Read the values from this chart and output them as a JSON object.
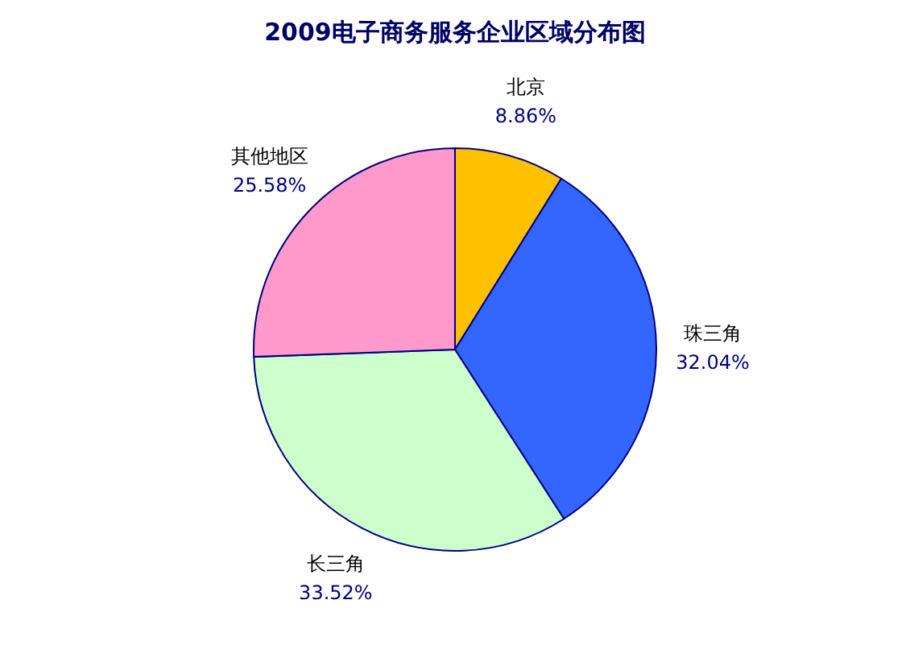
{
  "chart_data": {
    "type": "pie",
    "title": "2009电子商务服务企业区域分布图",
    "categories": [
      "北京",
      "珠三角",
      "长三角",
      "其他地区"
    ],
    "values": [
      8.86,
      32.04,
      33.52,
      25.58
    ],
    "colors": [
      "#ffc000",
      "#3366ff",
      "#ccffcc",
      "#ff99cc"
    ],
    "value_labels": [
      "8.86%",
      "32.04%",
      "33.52%",
      "25.58%"
    ],
    "legend": false
  }
}
